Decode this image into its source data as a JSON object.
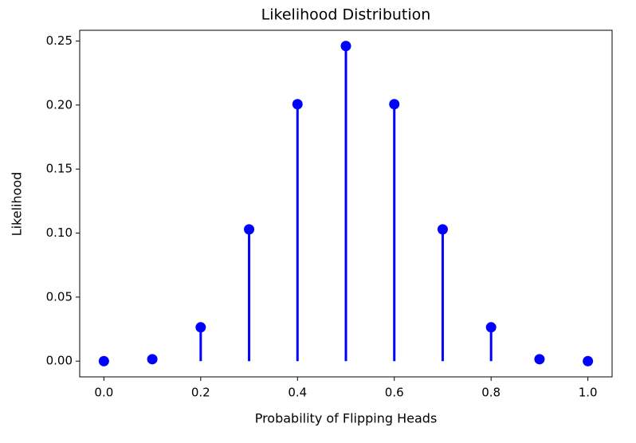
{
  "chart_data": {
    "type": "stem",
    "title": "Likelihood Distribution",
    "x_label": "Probability of Flipping Heads",
    "y_label": "Likelihood",
    "x": [
      0.0,
      0.1,
      0.2,
      0.3,
      0.4,
      0.5,
      0.6,
      0.7,
      0.8,
      0.9,
      1.0
    ],
    "values": [
      0,
      0.0015,
      0.0264,
      0.1029,
      0.2007,
      0.2461,
      0.2007,
      0.1029,
      0.0264,
      0.0015,
      0
    ],
    "color": "#0000ff",
    "xlim": [
      -0.05,
      1.05
    ],
    "xticks": [
      {
        "value": 0,
        "label": "0.0"
      },
      0.2,
      0.4,
      0.6,
      0.8,
      {
        "value": 1,
        "label": "1.0"
      }
    ],
    "ylim": [
      -0.0123,
      0.2584
    ],
    "yticks": [
      {
        "value": 0,
        "label": "0.00"
      },
      0.05,
      {
        "value": 0.1,
        "label": "0.10"
      },
      0.15,
      {
        "value": 0.2,
        "label": "0.20"
      },
      0.25
    ],
    "grid": false
  }
}
